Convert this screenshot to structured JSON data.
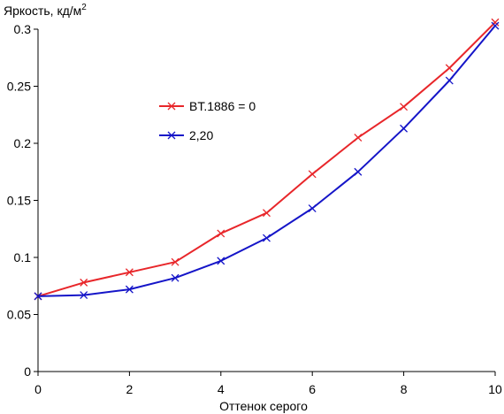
{
  "chart_data": {
    "type": "line",
    "ylabel": "Яркость, кд/м",
    "ylabel_sup": "2",
    "xlabel": "Оттенок серого",
    "xlim": [
      0,
      10
    ],
    "ylim": [
      0,
      0.3
    ],
    "x_ticks": [
      "0",
      "2",
      "4",
      "6",
      "8",
      "10"
    ],
    "y_ticks": [
      "0",
      "0.05",
      "0.1",
      "0.15",
      "0.2",
      "0.25",
      "0.3"
    ],
    "x": [
      0,
      1,
      2,
      3,
      4,
      5,
      6,
      7,
      8,
      9,
      10
    ],
    "grid": false,
    "legend_position": "upper-left-center",
    "series": [
      {
        "name": "BT.1886 = 0",
        "color": "#e8262a",
        "marker": "x",
        "values": [
          0.066,
          0.078,
          0.087,
          0.096,
          0.121,
          0.139,
          0.173,
          0.205,
          0.232,
          0.266,
          0.306
        ]
      },
      {
        "name": "2,20",
        "color": "#1515c8",
        "marker": "x",
        "values": [
          0.066,
          0.067,
          0.072,
          0.082,
          0.097,
          0.117,
          0.143,
          0.175,
          0.213,
          0.255,
          0.303
        ]
      }
    ]
  }
}
